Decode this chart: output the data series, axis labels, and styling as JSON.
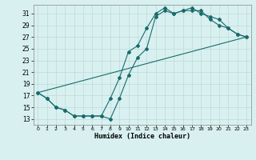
{
  "xlabel": "Humidex (Indice chaleur)",
  "background_color": "#d9f0f0",
  "grid_color": "#c0dede",
  "line_color": "#1a6b6b",
  "xlim": [
    -0.5,
    23.5
  ],
  "ylim": [
    12,
    32.5
  ],
  "xticks": [
    0,
    1,
    2,
    3,
    4,
    5,
    6,
    7,
    8,
    9,
    10,
    11,
    12,
    13,
    14,
    15,
    16,
    17,
    18,
    19,
    20,
    21,
    22,
    23
  ],
  "yticks": [
    13,
    15,
    17,
    19,
    21,
    23,
    25,
    27,
    29,
    31
  ],
  "line1_x": [
    0,
    1,
    2,
    3,
    4,
    5,
    6,
    7,
    8,
    9,
    10,
    11,
    12,
    13,
    14,
    15,
    16,
    17,
    18,
    19,
    20,
    21,
    22,
    23
  ],
  "line1_y": [
    17.5,
    16.5,
    15.0,
    14.5,
    13.5,
    13.5,
    13.5,
    13.5,
    13.0,
    16.5,
    20.5,
    23.5,
    25.0,
    30.5,
    31.5,
    31.0,
    31.5,
    31.5,
    31.5,
    30.0,
    29.0,
    28.5,
    27.5,
    27.0
  ],
  "line2_x": [
    0,
    1,
    2,
    3,
    4,
    5,
    6,
    7,
    8,
    9,
    10,
    11,
    12,
    13,
    14,
    15,
    16,
    17,
    18,
    19,
    20,
    21,
    22,
    23
  ],
  "line2_y": [
    17.5,
    16.5,
    15.0,
    14.5,
    13.5,
    13.5,
    13.5,
    13.5,
    16.5,
    20.0,
    24.5,
    25.5,
    28.5,
    31.0,
    32.0,
    31.0,
    31.5,
    32.0,
    31.0,
    30.5,
    30.0,
    28.5,
    27.5,
    27.0
  ],
  "line3_x": [
    0,
    23
  ],
  "line3_y": [
    17.5,
    27.0
  ],
  "marker": "D",
  "markersize": 2.0,
  "linewidth": 0.8
}
